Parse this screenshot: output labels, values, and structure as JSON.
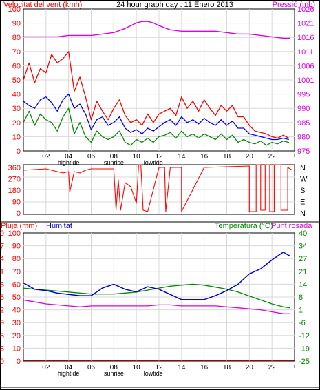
{
  "panel1": {
    "left_title": "Velocitat del vent (kmh)",
    "center_title": "24 hour graph day : 11 Enero 2013",
    "right_title": "Pressió (mb)"
  },
  "panel3": {
    "left_title_a": "Pluja (mm)",
    "left_title_b": "Humitat",
    "right_title_a": "Temperatura (°C)",
    "right_title_b": "Punt rosada"
  },
  "x_axis": {
    "hour_ticks": [
      "02",
      "04",
      "06",
      "08",
      "10",
      "12",
      "14",
      "16",
      "18",
      "20",
      "22",
      "!"
    ],
    "events": [
      {
        "label": "hightide",
        "hour": 4
      },
      {
        "label": "sunrise",
        "hour": 8
      },
      {
        "label": "lowtide",
        "hour": 11.5
      }
    ]
  },
  "colors": {
    "wind_gust": "#ff0000",
    "wind_avg": "#0000ee",
    "wind_low": "#008800",
    "pressure": "#dd00dd",
    "direction": "#ff0000",
    "humidity": "#0000cc",
    "temperature": "#008800",
    "dewpoint": "#dd00dd",
    "rain": "#ff0000",
    "left_axis_text": "#ff0000",
    "humidity_axis_text": "#0000cc",
    "temp_axis_text": "#008800",
    "pressure_axis_text": "#dd00dd"
  },
  "chart_data": [
    {
      "type": "line",
      "title": "24 hour graph day : 11 Enero 2013",
      "x_range": [
        0,
        24
      ],
      "y_left": {
        "label": "Velocitat del vent (kmh)",
        "range": [
          0,
          100
        ],
        "ticks": [
          "0",
          "10",
          "20",
          "30",
          "40",
          "50",
          "60",
          "70",
          "80",
          "90",
          "100"
        ]
      },
      "y_right": {
        "label": "Pressió (mb)",
        "range": [
          975,
          1026
        ],
        "ticks": [
          "975",
          "980",
          "985",
          "990",
          "995",
          "1001",
          "1006",
          "1011",
          "1016",
          "1021",
          "1026"
        ]
      },
      "series": [
        {
          "key": "gust",
          "axis": "left",
          "x": [
            0,
            0.5,
            1,
            1.5,
            2,
            2.5,
            3,
            3.5,
            4,
            4.5,
            5,
            5.5,
            6,
            6.5,
            7,
            7.5,
            8,
            8.5,
            9,
            9.5,
            10,
            10.5,
            11,
            11.5,
            12,
            12.5,
            13,
            13.5,
            14,
            14.5,
            15,
            15.5,
            16,
            16.5,
            17,
            17.5,
            18,
            18.5,
            19,
            19.5,
            20,
            20.5,
            21,
            21.5,
            22,
            22.5,
            23,
            23.5
          ],
          "y": [
            50,
            62,
            48,
            58,
            55,
            68,
            62,
            65,
            70,
            42,
            52,
            38,
            22,
            35,
            28,
            22,
            30,
            36,
            25,
            20,
            22,
            18,
            26,
            20,
            26,
            28,
            30,
            25,
            38,
            30,
            35,
            28,
            36,
            30,
            25,
            32,
            28,
            32,
            24,
            24,
            18,
            14,
            13,
            12,
            10,
            9,
            11,
            9
          ]
        },
        {
          "key": "average",
          "axis": "left",
          "x": [
            0,
            0.5,
            1,
            1.5,
            2,
            2.5,
            3,
            3.5,
            4,
            4.5,
            5,
            5.5,
            6,
            6.5,
            7,
            7.5,
            8,
            8.5,
            9,
            9.5,
            10,
            10.5,
            11,
            11.5,
            12,
            12.5,
            13,
            13.5,
            14,
            14.5,
            15,
            15.5,
            16,
            16.5,
            17,
            17.5,
            18,
            18.5,
            19,
            19.5,
            20,
            20.5,
            21,
            21.5,
            22,
            22.5,
            23,
            23.5
          ],
          "y": [
            35,
            32,
            30,
            36,
            38,
            34,
            28,
            36,
            40,
            30,
            33,
            26,
            15,
            22,
            24,
            18,
            20,
            24,
            16,
            13,
            15,
            12,
            16,
            14,
            17,
            20,
            22,
            18,
            24,
            20,
            22,
            19,
            23,
            20,
            18,
            22,
            18,
            21,
            16,
            16,
            12,
            11,
            10,
            9,
            8,
            8,
            9,
            8
          ]
        },
        {
          "key": "low",
          "axis": "left",
          "x": [
            0,
            0.5,
            1,
            1.5,
            2,
            2.5,
            3,
            3.5,
            4,
            4.5,
            5,
            5.5,
            6,
            6.5,
            7,
            7.5,
            8,
            8.5,
            9,
            9.5,
            10,
            10.5,
            11,
            11.5,
            12,
            12.5,
            13,
            13.5,
            14,
            14.5,
            15,
            15.5,
            16,
            16.5,
            17,
            17.5,
            18,
            18.5,
            19,
            19.5,
            20,
            20.5,
            21,
            21.5,
            22,
            22.5,
            23,
            23.5
          ],
          "y": [
            20,
            28,
            18,
            26,
            22,
            20,
            14,
            24,
            30,
            12,
            20,
            10,
            6,
            14,
            10,
            8,
            10,
            14,
            6,
            4,
            8,
            6,
            9,
            6,
            10,
            11,
            13,
            9,
            14,
            10,
            12,
            9,
            12,
            10,
            8,
            12,
            8,
            11,
            6,
            8,
            6,
            5,
            7,
            4,
            6,
            5,
            7,
            6
          ]
        },
        {
          "key": "pressure",
          "axis": "right",
          "x": [
            0,
            1,
            2,
            3,
            4,
            5,
            6,
            7,
            8,
            9,
            10,
            10.5,
            11,
            11.5,
            12,
            13,
            14,
            15,
            16,
            17,
            18,
            19,
            20,
            21,
            22,
            23,
            23.6
          ],
          "y": [
            1016,
            1016,
            1016,
            1016,
            1016.5,
            1016.5,
            1016.5,
            1017,
            1017.5,
            1019,
            1021,
            1021.5,
            1021.5,
            1021,
            1020,
            1018.5,
            1018,
            1018,
            1018,
            1018,
            1017.5,
            1017,
            1017,
            1016.5,
            1016,
            1015.5,
            1015.5
          ]
        }
      ]
    },
    {
      "type": "line",
      "title": "",
      "x_range": [
        0,
        24
      ],
      "y_left": {
        "range": [
          0,
          360
        ],
        "ticks": [
          "0",
          "90",
          "180",
          "270",
          "360"
        ]
      },
      "y_right": {
        "ticks": [
          "N",
          "E",
          "S",
          "W",
          "N"
        ]
      },
      "series": [
        {
          "key": "direction",
          "x": [
            0,
            2,
            3.5,
            4,
            4.1,
            4.5,
            5,
            5.5,
            6,
            7,
            8,
            8.2,
            8.4,
            8.6,
            9,
            9.5,
            10,
            10.2,
            10.4,
            10.6,
            11,
            12,
            12.5,
            12.6,
            13,
            13.8,
            14,
            14,
            16,
            20,
            20,
            20.6,
            20.6,
            21,
            21,
            21.4,
            21.4,
            21.8,
            21.8,
            22.2,
            22.2,
            22.8,
            22.8,
            23.4,
            23.4,
            23.8
          ],
          "y": [
            320,
            330,
            300,
            310,
            160,
            310,
            300,
            320,
            330,
            330,
            330,
            30,
            250,
            30,
            230,
            200,
            80,
            360,
            360,
            30,
            20,
            340,
            340,
            20,
            340,
            340,
            340,
            20,
            340,
            350,
            20,
            20,
            360,
            360,
            30,
            30,
            360,
            360,
            20,
            20,
            360,
            360,
            30,
            30,
            340,
            320
          ]
        }
      ]
    },
    {
      "type": "line",
      "title": "",
      "x_range": [
        0,
        24
      ],
      "y_left_rain": {
        "label": "Pluja (mm)",
        "ticks": [
          "0",
          "3",
          "6",
          "9",
          "12",
          "15",
          "18",
          "21",
          "24",
          "27",
          "30"
        ]
      },
      "y_left_humidity": {
        "label": "Humitat",
        "range": [
          0,
          100
        ],
        "ticks": [
          "0",
          "10",
          "20",
          "30",
          "40",
          "50",
          "60",
          "70",
          "80",
          "90",
          "100"
        ]
      },
      "y_right": {
        "label": "Temperatura (°C) / Punt rosada",
        "range": [
          -25,
          40
        ],
        "ticks": [
          "-25",
          "-19",
          "-12",
          "-6",
          "1",
          "8",
          "14",
          "21",
          "27",
          "34",
          "40"
        ]
      },
      "series": [
        {
          "key": "humidity",
          "axis": "humidity",
          "x": [
            0,
            1,
            2,
            3,
            4,
            5,
            6,
            7,
            8,
            9,
            10,
            11,
            12,
            13,
            14,
            15,
            16,
            17,
            18,
            19,
            20,
            21,
            22,
            23,
            23.6
          ],
          "y": [
            61,
            56,
            55,
            53,
            52,
            51,
            51,
            57,
            60,
            56,
            54,
            58,
            56,
            52,
            48,
            48,
            48,
            51,
            55,
            60,
            68,
            72,
            79,
            85,
            82
          ]
        },
        {
          "key": "temperature",
          "axis": "right",
          "x": [
            0,
            1,
            2,
            3,
            4,
            5,
            6,
            7,
            8,
            9,
            10,
            11,
            12,
            13,
            14,
            15,
            16,
            17,
            18,
            19,
            20,
            21,
            22,
            23,
            23.6
          ],
          "y": [
            12,
            11.5,
            11,
            10.5,
            10,
            9.5,
            9,
            9,
            9,
            9.5,
            10,
            11,
            12,
            13,
            13.5,
            14,
            13.5,
            12.5,
            11.5,
            10,
            8,
            6,
            4,
            2.5,
            2
          ]
        },
        {
          "key": "dewpoint",
          "axis": "right",
          "x": [
            0,
            1,
            2,
            3,
            4,
            5,
            6,
            7,
            8,
            9,
            10,
            11,
            12,
            13,
            14,
            15,
            16,
            17,
            18,
            19,
            20,
            21,
            22,
            23,
            23.6
          ],
          "y": [
            6,
            5,
            4,
            3.5,
            3,
            2.5,
            3,
            3,
            3,
            3,
            3,
            3,
            3.5,
            3.5,
            3,
            3,
            3,
            3,
            2.5,
            2,
            1.5,
            1,
            0,
            -1,
            -1
          ]
        },
        {
          "key": "rain",
          "axis": "rain",
          "x": [
            0,
            24
          ],
          "y": [
            0,
            0
          ]
        }
      ]
    }
  ]
}
